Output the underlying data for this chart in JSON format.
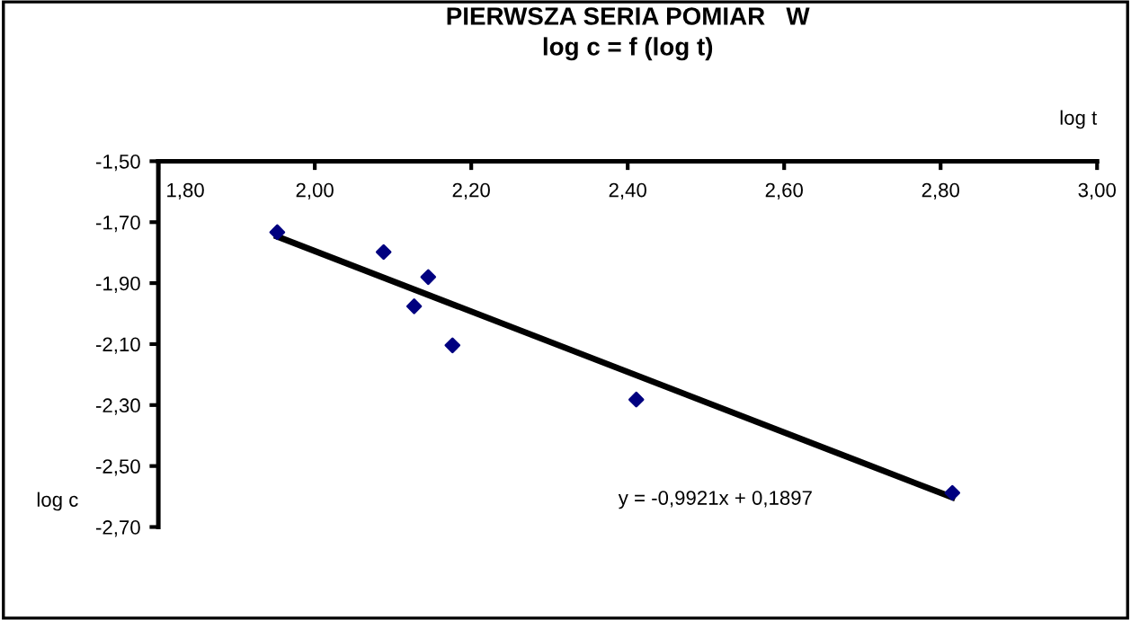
{
  "chart_data": {
    "type": "scatter",
    "title": "PIERWSZA SERIA POMIAR   W\nlog c = f (log t)",
    "xlabel": "log t",
    "ylabel": "log c",
    "series": [
      {
        "color": "#000080",
        "marker": "diamond",
        "x": [
          1.952,
          2.088,
          2.145,
          2.127,
          2.176,
          2.411,
          2.815
        ],
        "values": [
          -1.733,
          -1.798,
          -1.88,
          -1.976,
          -2.104,
          -2.282,
          -2.588
        ]
      },
      {
        "type": "line",
        "color": "#000000",
        "marker": "none",
        "line_style": "solid",
        "x": [
          1.952,
          2.815
        ],
        "values": [
          -1.747,
          -2.603
        ]
      }
    ],
    "annotations": [
      "y = -0,9921x + 0,1897"
    ],
    "xlim": [
      1.8,
      3.0
    ],
    "ylim": [
      -2.7,
      -1.5
    ],
    "xticks": [
      {
        "value": 1.8,
        "label": "1,80"
      },
      {
        "value": 2.0,
        "label": "2,00"
      },
      {
        "value": 2.2,
        "label": "2,20"
      },
      {
        "value": 2.4,
        "label": "2,40"
      },
      {
        "value": 2.6,
        "label": "2,60"
      },
      {
        "value": 2.8,
        "label": "2,80"
      },
      {
        "value": 3.0,
        "label": "3,00"
      }
    ],
    "yticks": [
      {
        "value": -1.5,
        "label": "-1,50"
      },
      {
        "value": -1.7,
        "label": "-1,70"
      },
      {
        "value": -1.9,
        "label": "-1,90"
      },
      {
        "value": -2.1,
        "label": "-2,10"
      },
      {
        "value": -2.3,
        "label": "-2,30"
      },
      {
        "value": -2.5,
        "label": "-2,50"
      },
      {
        "value": -2.7,
        "label": "-2,70"
      }
    ],
    "grid": false
  }
}
